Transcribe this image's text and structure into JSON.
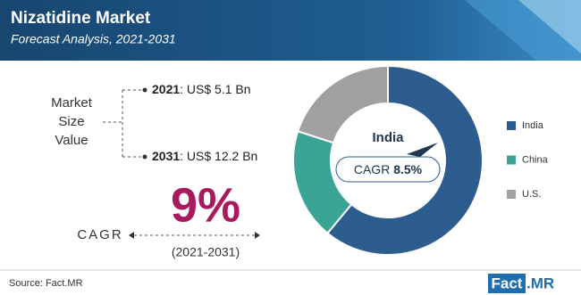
{
  "header": {
    "title": "Nizatidine Market",
    "subtitle": "Forecast Analysis, 2021-2031"
  },
  "market_size": {
    "label_lines": [
      "Market",
      "Size",
      "Value"
    ],
    "items": [
      {
        "year": "2021",
        "value": ": US$ 5.1 Bn"
      },
      {
        "year": "2031",
        "value": ": US$ 12.2 Bn"
      }
    ]
  },
  "cagr": {
    "value": "9%",
    "label": "CAGR",
    "period": "(2021-2031)"
  },
  "chart_data": {
    "type": "donut",
    "categories": [
      "India",
      "China",
      "U.S."
    ],
    "values": [
      61,
      19,
      20
    ],
    "colors": [
      "#2d5d8f",
      "#3aa594",
      "#a0a0a0"
    ],
    "center_title": "India",
    "center_label": "CAGR",
    "center_value": "8.5%"
  },
  "footer": {
    "source": "Source: Fact.MR",
    "logo_left": "Fact",
    "logo_right": ".MR"
  }
}
